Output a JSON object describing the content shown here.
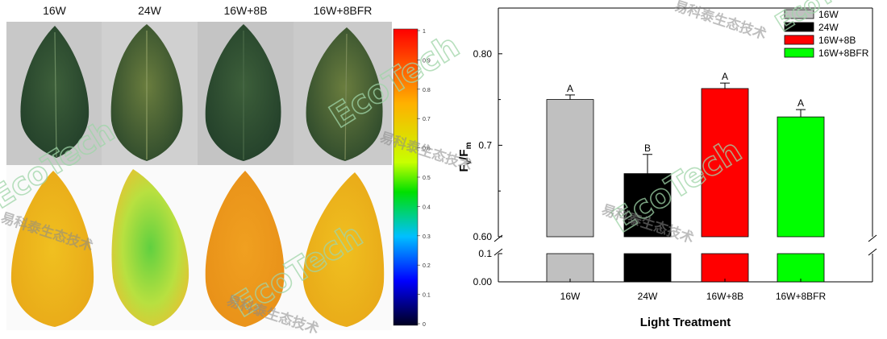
{
  "photo_panel": {
    "column_labels": [
      "16W",
      "24W",
      "16W+8B",
      "16W+8BFR"
    ],
    "colorbar_ticks": [
      "1",
      "0.9",
      "0.8",
      "0.7",
      "0.6",
      "0.5",
      "0.4",
      "0.3",
      "0.2",
      "0.1",
      "0"
    ]
  },
  "watermark": {
    "brand_text": "EcoTech",
    "chinese_text": "易科泰生态技术",
    "color": "#9fd5a8"
  },
  "chart_data": {
    "type": "bar",
    "categories": [
      "16W",
      "24W",
      "16W+8B",
      "16W+8BFR"
    ],
    "series": [
      {
        "values": [
          0.75,
          0.669,
          0.762,
          0.731
        ],
        "errors": [
          0.005,
          0.021,
          0.006,
          0.008
        ],
        "colors": [
          "#c0c0c0",
          "#000000",
          "#ff0000",
          "#00ff00"
        ],
        "significance_letters": [
          "A",
          "B",
          "A",
          "A"
        ]
      }
    ],
    "legend": [
      "16W",
      "24W",
      "16W+8B",
      "16W+8BFR"
    ],
    "legend_placement": "top-right",
    "xlabel": "Light Treatment",
    "ylabel_main": "F",
    "ylabel_sub_v": "v",
    "ylabel_slash": "/F",
    "ylabel_sub_m": "m",
    "y_axis_break": true,
    "y_upper_range": [
      0.6,
      0.85
    ],
    "y_upper_ticks": [
      "0.60",
      "0.7",
      "0.80"
    ],
    "y_upper_tick_values": [
      0.6,
      0.7,
      0.8
    ],
    "y_lower_range": [
      0.0,
      0.1
    ],
    "y_lower_ticks": [
      "0.00",
      "0.1"
    ],
    "y_lower_tick_values": [
      0.0,
      0.1
    ],
    "grid": false
  }
}
